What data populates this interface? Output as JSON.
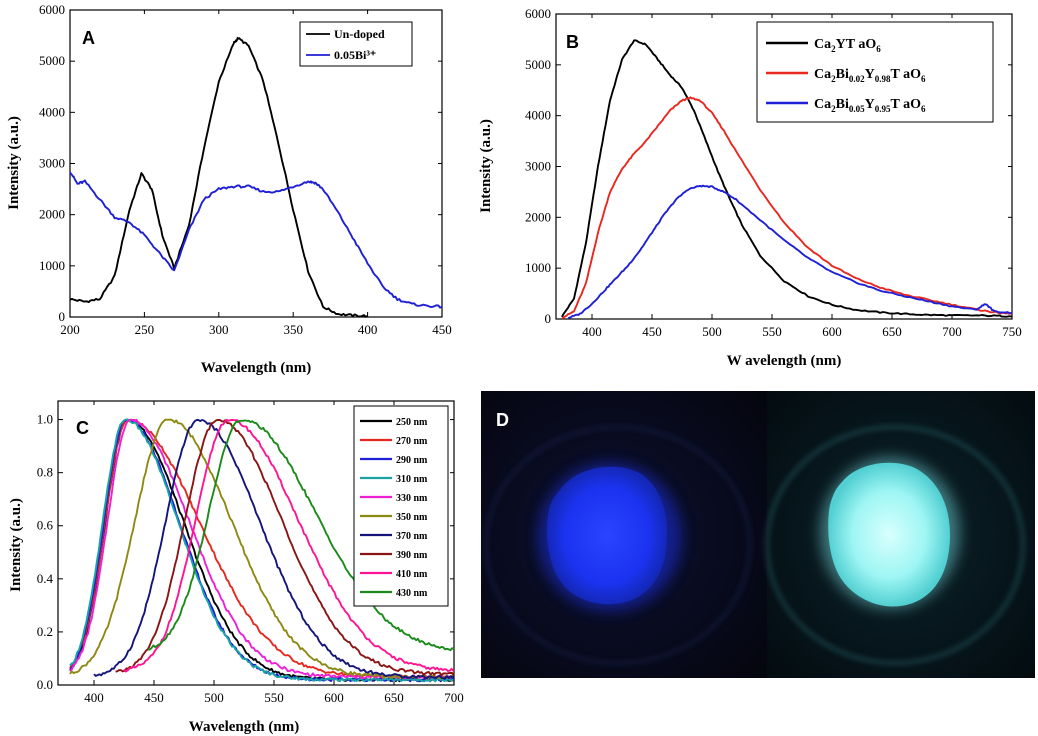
{
  "chart_data": [
    {
      "panel": "A",
      "type": "line",
      "xlabel": "Wavelength (nm)",
      "ylabel": "Intensity (a.u.)",
      "xlim": [
        200,
        450
      ],
      "ylim": [
        0,
        6000
      ],
      "xticks": [
        200,
        250,
        300,
        350,
        400,
        450
      ],
      "yticks": [
        0,
        1000,
        2000,
        3000,
        4000,
        5000,
        6000
      ],
      "legend_position": "top-right",
      "series": [
        {
          "name": "Un-doped",
          "color": "#000000",
          "x": [
            200,
            210,
            220,
            230,
            240,
            248,
            255,
            262,
            270,
            280,
            290,
            300,
            310,
            313,
            320,
            330,
            340,
            350,
            360,
            370,
            380,
            390,
            400
          ],
          "y": [
            350,
            300,
            350,
            800,
            2100,
            2800,
            2500,
            1600,
            950,
            1800,
            3300,
            4600,
            5350,
            5450,
            5300,
            4600,
            3400,
            2100,
            900,
            200,
            60,
            30,
            20
          ]
        },
        {
          "name": "0.05Bi³⁺",
          "color": "#1f1fd6",
          "x": [
            200,
            205,
            210,
            220,
            230,
            240,
            250,
            260,
            270,
            280,
            290,
            300,
            310,
            320,
            330,
            340,
            350,
            360,
            365,
            370,
            380,
            390,
            400,
            410,
            420,
            430,
            440,
            450
          ],
          "y": [
            2850,
            2600,
            2650,
            2300,
            1950,
            1850,
            1600,
            1250,
            900,
            1700,
            2300,
            2500,
            2550,
            2550,
            2450,
            2450,
            2550,
            2650,
            2620,
            2500,
            2050,
            1550,
            1050,
            600,
            350,
            250,
            220,
            200
          ]
        }
      ]
    },
    {
      "panel": "B",
      "type": "line",
      "xlabel": "W avelength (nm)",
      "ylabel": "Intensity (a.u.)",
      "xlim": [
        370,
        750
      ],
      "ylim": [
        0,
        6000
      ],
      "xticks": [
        400,
        450,
        500,
        550,
        600,
        650,
        700,
        750
      ],
      "yticks": [
        0,
        1000,
        2000,
        3000,
        4000,
        5000,
        6000
      ],
      "legend_position": "top-right",
      "legend": [
        {
          "base": "Ca",
          "s1": "2",
          "mid1": "YT aO",
          "s2": "6",
          "mid2": "",
          "s3": "",
          "mid3": "",
          "s4": ""
        },
        {
          "base": "Ca",
          "s1": "2",
          "mid1": "Bi",
          "s2": "0.02",
          "mid2": "Y",
          "s3": "0.98",
          "mid3": "T aO",
          "s4": "6"
        },
        {
          "base": "Ca",
          "s1": "2",
          "mid1": "Bi",
          "s2": "0.05",
          "mid2": "Y",
          "s3": "0.95",
          "mid3": "T aO",
          "s4": "6"
        }
      ],
      "series": [
        {
          "name": "Ca2YTaO6",
          "color": "#000000",
          "x": [
            375,
            385,
            395,
            405,
            415,
            425,
            435,
            445,
            455,
            465,
            475,
            485,
            495,
            505,
            515,
            525,
            540,
            560,
            580,
            600,
            620,
            640,
            660,
            680,
            700,
            720,
            740,
            750
          ],
          "y": [
            50,
            400,
            1500,
            3000,
            4300,
            5100,
            5480,
            5400,
            5100,
            4800,
            4550,
            4100,
            3500,
            2900,
            2350,
            1850,
            1250,
            750,
            450,
            280,
            180,
            130,
            100,
            80,
            70,
            70,
            60,
            50
          ]
        },
        {
          "name": "Ca2Bi0.02Y0.98TaO6",
          "color": "#e8271e",
          "x": [
            375,
            385,
            395,
            405,
            415,
            425,
            435,
            445,
            455,
            465,
            475,
            482,
            490,
            500,
            510,
            520,
            540,
            560,
            580,
            600,
            620,
            640,
            660,
            680,
            700,
            720,
            730,
            740,
            750
          ],
          "y": [
            20,
            150,
            700,
            1700,
            2500,
            2950,
            3250,
            3500,
            3800,
            4100,
            4300,
            4350,
            4300,
            4050,
            3700,
            3300,
            2550,
            1900,
            1400,
            1050,
            800,
            620,
            480,
            380,
            280,
            190,
            150,
            120,
            100
          ]
        },
        {
          "name": "Ca2Bi0.05Y0.95TaO6",
          "color": "#1f1fd6",
          "x": [
            380,
            390,
            400,
            410,
            420,
            430,
            440,
            450,
            460,
            470,
            480,
            490,
            500,
            510,
            520,
            540,
            560,
            580,
            600,
            620,
            640,
            660,
            680,
            700,
            720,
            728,
            735,
            750
          ],
          "y": [
            20,
            100,
            300,
            550,
            800,
            1050,
            1350,
            1700,
            2050,
            2350,
            2550,
            2620,
            2600,
            2500,
            2350,
            1950,
            1550,
            1200,
            920,
            720,
            560,
            450,
            350,
            250,
            180,
            300,
            150,
            120
          ]
        }
      ]
    },
    {
      "panel": "C",
      "type": "line",
      "xlabel": "Wavelength (nm)",
      "ylabel": "Intensity (a.u.)",
      "xlim": [
        370,
        700
      ],
      "ylim": [
        0,
        1.07
      ],
      "xticks": [
        400,
        450,
        500,
        550,
        600,
        650,
        700
      ],
      "yticks": [
        0.0,
        0.2,
        0.4,
        0.6,
        0.8,
        1.0
      ],
      "legend_position": "top-right",
      "series": [
        {
          "name": "250 nm",
          "color": "#000000",
          "peak": 428,
          "wl": 22,
          "wr": 55,
          "start": 380,
          "floor": 0.02
        },
        {
          "name": "270 nm",
          "color": "#e8271e",
          "peak": 428,
          "wl": 22,
          "wr": 70,
          "start": 380,
          "floor": 0.03
        },
        {
          "name": "290 nm",
          "color": "#1f1fd6",
          "peak": 427,
          "wl": 22,
          "wr": 52,
          "start": 380,
          "floor": 0.02
        },
        {
          "name": "310 nm",
          "color": "#1aa3a3",
          "peak": 426,
          "wl": 22,
          "wr": 52,
          "start": 380,
          "floor": 0.02
        },
        {
          "name": "330 nm",
          "color": "#ee20d6",
          "peak": 430,
          "wl": 22,
          "wr": 58,
          "start": 380,
          "floor": 0.03
        },
        {
          "name": "350 nm",
          "color": "#8c8a12",
          "peak": 462,
          "wl": 33,
          "wr": 62,
          "start": 380,
          "floor": 0.03
        },
        {
          "name": "370 nm",
          "color": "#14147a",
          "peak": 487,
          "wl": 32,
          "wr": 60,
          "start": 400,
          "floor": 0.03
        },
        {
          "name": "390 nm",
          "color": "#8b1414",
          "peak": 503,
          "wl": 32,
          "wr": 63,
          "start": 418,
          "floor": 0.04
        },
        {
          "name": "410 nm",
          "color": "#ff1493",
          "peak": 512,
          "wl": 32,
          "wr": 68,
          "start": 425,
          "floor": 0.05
        },
        {
          "name": "430 nm",
          "color": "#1a8a1a",
          "peak": 523,
          "wl": 32,
          "wr": 72,
          "start": 445,
          "floor": 0.12
        }
      ]
    }
  ],
  "panel_letters": {
    "a": "A",
    "b": "B",
    "c": "C",
    "d": "D"
  },
  "photo": {
    "letter": "D",
    "left_glow": "#1b33f0",
    "right_glow": "#9ef6f4"
  }
}
